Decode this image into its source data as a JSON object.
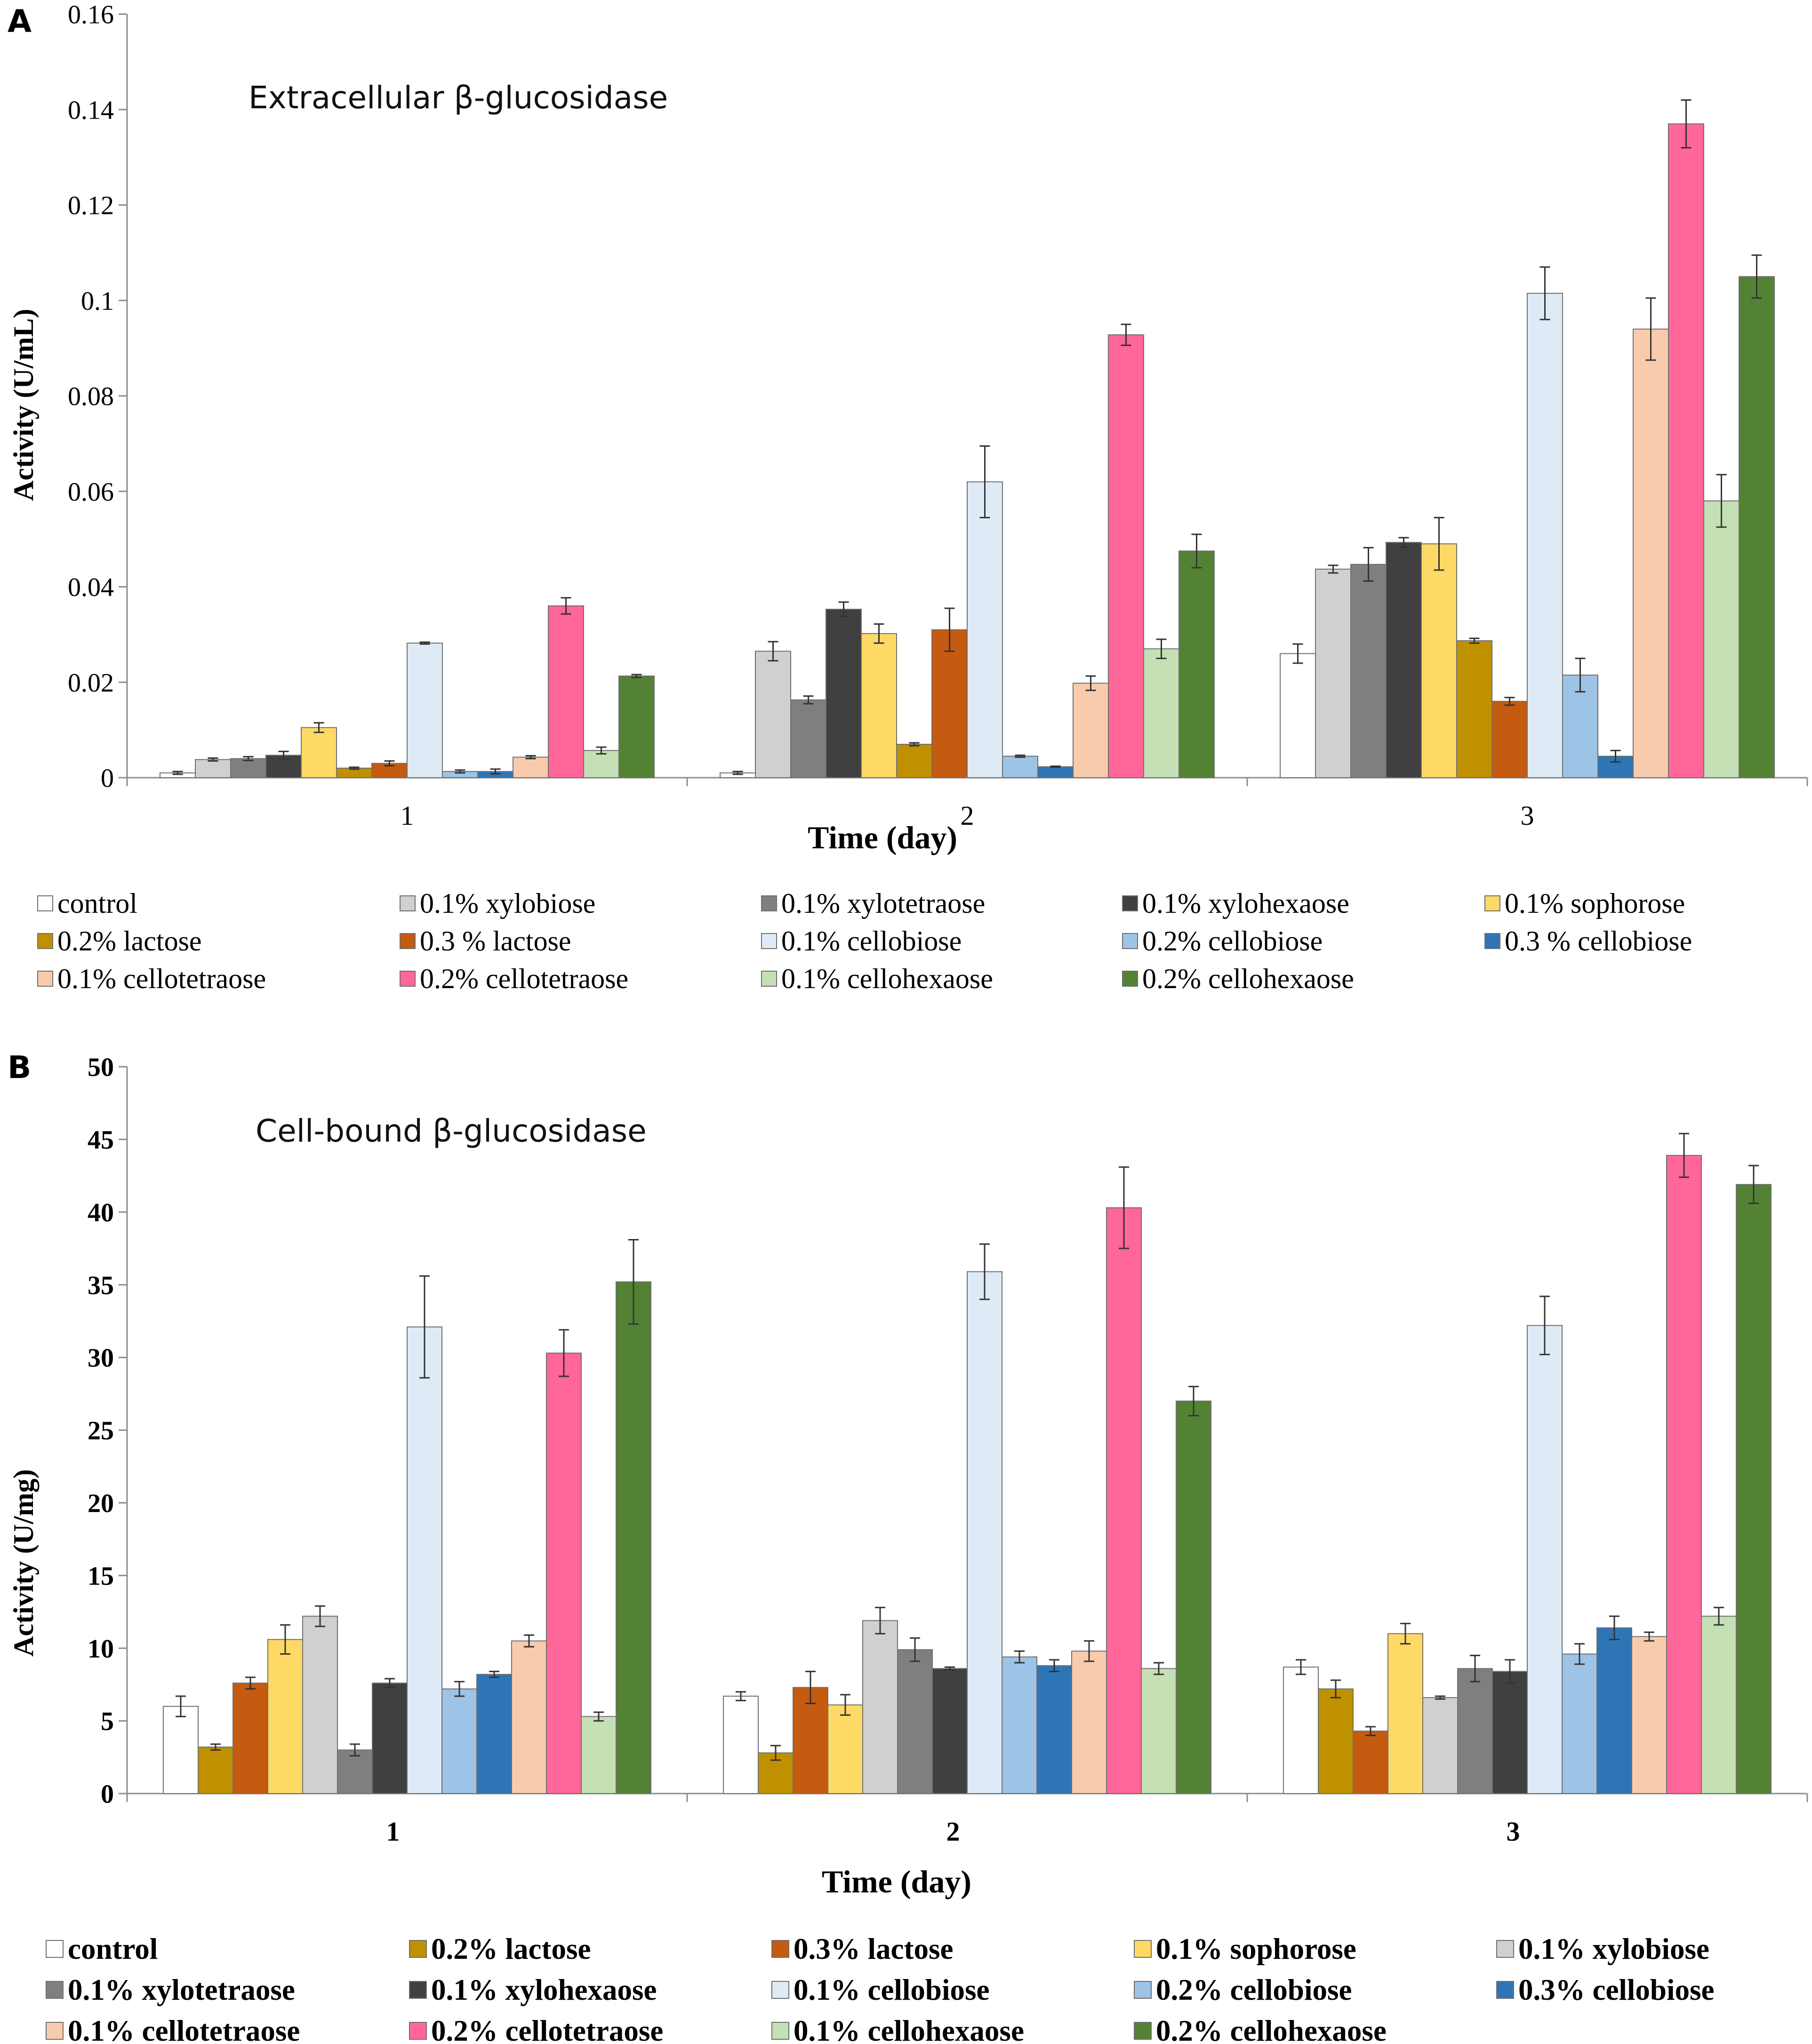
{
  "figure": {
    "panel_a_label": "A",
    "panel_b_label": "B"
  },
  "chart_data": [
    {
      "type": "bar",
      "panel": "A",
      "title": "Extracellular β-glucosidase",
      "xlabel": "Time (day)",
      "ylabel": "Activity  (U/mL)",
      "ylim": [
        0,
        0.16
      ],
      "yticks": [
        "0",
        "0.02",
        "0.04",
        "0.06",
        "0.08",
        "0.1",
        "0.12",
        "0.14",
        "0.16"
      ],
      "categories": [
        "1",
        "2",
        "3"
      ],
      "legend_columns": 5,
      "series": [
        {
          "name": "control",
          "color": "#ffffff",
          "values": [
            0.001,
            0.001,
            0.026
          ],
          "errors": [
            0.0003,
            0.0003,
            0.002
          ]
        },
        {
          "name": "0.1% xylobiose",
          "color": "#d0d0d0",
          "values": [
            0.0038,
            0.0265,
            0.0437
          ],
          "errors": [
            0.0003,
            0.002,
            0.0008
          ]
        },
        {
          "name": "0.1% xylotetraose",
          "color": "#7f7f7f",
          "values": [
            0.004,
            0.0163,
            0.0447
          ],
          "errors": [
            0.0004,
            0.0008,
            0.0035
          ]
        },
        {
          "name": "0.1% xylohexaose",
          "color": "#404040",
          "values": [
            0.0047,
            0.0353,
            0.0493
          ],
          "errors": [
            0.0008,
            0.0015,
            0.001
          ]
        },
        {
          "name": "0.1% sophorose",
          "color": "#ffd966",
          "values": [
            0.0105,
            0.0302,
            0.049
          ],
          "errors": [
            0.001,
            0.002,
            0.0055
          ]
        },
        {
          "name": "0.2% lactose",
          "color": "#bf9000",
          "values": [
            0.002,
            0.007,
            0.0287
          ],
          "errors": [
            0.0002,
            0.0003,
            0.0005
          ]
        },
        {
          "name": "0.3 % lactose",
          "color": "#c55a11",
          "values": [
            0.003,
            0.031,
            0.016
          ],
          "errors": [
            0.0005,
            0.0045,
            0.0008
          ]
        },
        {
          "name": "0.1% cellobiose",
          "color": "#deebf7",
          "values": [
            0.0282,
            0.062,
            0.1015
          ],
          "errors": [
            0.0002,
            0.0075,
            0.0055
          ]
        },
        {
          "name": "0.2% cellobiose",
          "color": "#9dc3e6",
          "values": [
            0.0013,
            0.0045,
            0.0215
          ],
          "errors": [
            0.0003,
            0.0002,
            0.0035
          ]
        },
        {
          "name": "0.3 % cellobiose",
          "color": "#2e75b6",
          "values": [
            0.0013,
            0.0023,
            0.0045
          ],
          "errors": [
            0.0005,
            0.0001,
            0.0012
          ]
        },
        {
          "name": "0.1% cellotetraose",
          "color": "#f8cbad",
          "values": [
            0.0043,
            0.0198,
            0.094
          ],
          "errors": [
            0.0003,
            0.0015,
            0.0065
          ]
        },
        {
          "name": "0.2% cellotetraose",
          "color": "#ff6699",
          "values": [
            0.036,
            0.0928,
            0.137
          ],
          "errors": [
            0.0017,
            0.0022,
            0.005
          ]
        },
        {
          "name": "0.1% cellohexaose",
          "color": "#c5e0b4",
          "values": [
            0.0057,
            0.027,
            0.058
          ],
          "errors": [
            0.0007,
            0.002,
            0.0055
          ]
        },
        {
          "name": "0.2% cellohexaose",
          "color": "#548235",
          "values": [
            0.0213,
            0.0475,
            0.105
          ],
          "errors": [
            0.0003,
            0.0035,
            0.0045
          ]
        }
      ]
    },
    {
      "type": "bar",
      "panel": "B",
      "title": "Cell-bound β-glucosidase",
      "xlabel": "Time (day)",
      "ylabel": "Activity  (U/mg)",
      "ylim": [
        0,
        50
      ],
      "yticks": [
        "0",
        "5",
        "10",
        "15",
        "20",
        "25",
        "30",
        "35",
        "40",
        "45",
        "50"
      ],
      "categories": [
        "1",
        "2",
        "3"
      ],
      "legend_columns": 5,
      "series": [
        {
          "name": "control",
          "color": "#ffffff",
          "values": [
            6.0,
            6.7,
            8.7
          ],
          "errors": [
            0.7,
            0.3,
            0.5
          ]
        },
        {
          "name": "0.2% lactose",
          "color": "#bf9000",
          "values": [
            3.2,
            2.8,
            7.2
          ],
          "errors": [
            0.2,
            0.5,
            0.6
          ]
        },
        {
          "name": "0.3% lactose",
          "color": "#c55a11",
          "values": [
            7.6,
            7.3,
            4.3
          ],
          "errors": [
            0.4,
            1.1,
            0.3
          ]
        },
        {
          "name": "0.1% sophorose",
          "color": "#ffd966",
          "values": [
            10.6,
            6.1,
            11.0
          ],
          "errors": [
            1.0,
            0.7,
            0.7
          ]
        },
        {
          "name": "0.1% xylobiose",
          "color": "#d0d0d0",
          "values": [
            12.2,
            11.9,
            6.6
          ],
          "errors": [
            0.7,
            0.9,
            0.1
          ]
        },
        {
          "name": "0.1% xylotetraose",
          "color": "#7f7f7f",
          "values": [
            3.0,
            9.9,
            8.6
          ],
          "errors": [
            0.4,
            0.8,
            0.9
          ]
        },
        {
          "name": "0.1% xylohexaose",
          "color": "#404040",
          "values": [
            7.6,
            8.6,
            8.4
          ],
          "errors": [
            0.3,
            0.1,
            0.8
          ]
        },
        {
          "name": "0.1% cellobiose",
          "color": "#deebf7",
          "values": [
            32.1,
            35.9,
            32.2
          ],
          "errors": [
            3.5,
            1.9,
            2.0
          ]
        },
        {
          "name": "0.2% cellobiose",
          "color": "#9dc3e6",
          "values": [
            7.2,
            9.4,
            9.6
          ],
          "errors": [
            0.5,
            0.4,
            0.7
          ]
        },
        {
          "name": "0.3% cellobiose",
          "color": "#2e75b6",
          "values": [
            8.2,
            8.8,
            11.4
          ],
          "errors": [
            0.2,
            0.4,
            0.8
          ]
        },
        {
          "name": "0.1% cellotetraose",
          "color": "#f8cbad",
          "values": [
            10.5,
            9.8,
            10.8
          ],
          "errors": [
            0.4,
            0.7,
            0.3
          ]
        },
        {
          "name": "0.2% cellotetraose",
          "color": "#ff6699",
          "values": [
            30.3,
            40.3,
            43.9
          ],
          "errors": [
            1.6,
            2.8,
            1.5
          ]
        },
        {
          "name": "0.1% cellohexaose",
          "color": "#c5e0b4",
          "values": [
            5.3,
            8.6,
            12.2
          ],
          "errors": [
            0.3,
            0.4,
            0.6
          ]
        },
        {
          "name": "0.2% cellohexaose",
          "color": "#548235",
          "values": [
            35.2,
            27.0,
            41.9
          ],
          "errors": [
            2.9,
            1.0,
            1.3
          ]
        }
      ]
    }
  ]
}
